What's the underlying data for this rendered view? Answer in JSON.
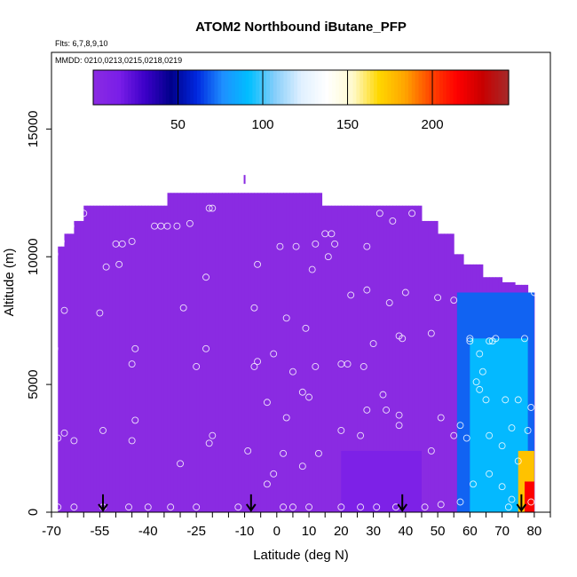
{
  "chart_data": {
    "type": "heatmap",
    "title": "ATOM2 Northbound iButane_PFP",
    "notes": [
      "Flts: 6,7,8,9,10",
      "MMDD: 0210,0213,0215,0218,0219"
    ],
    "xlabel": "Latitude (deg N)",
    "ylabel": "Altitude (m)",
    "xlim": [
      -70,
      85
    ],
    "ylim": [
      0,
      18000
    ],
    "xticks": [
      -70,
      -55,
      -40,
      -25,
      -10,
      0,
      10,
      20,
      30,
      40,
      50,
      60,
      70,
      80
    ],
    "xtick_labels": [
      "-70",
      "-55",
      "-40",
      "-25",
      "-10",
      "0",
      "10",
      "20",
      "30",
      "40",
      "50",
      "60",
      "70",
      "80"
    ],
    "yticks": [
      0,
      5000,
      10000,
      15000
    ],
    "ytick_labels": [
      "0",
      "5000",
      "10000",
      "15000"
    ],
    "colorbar": {
      "range": [
        0,
        245
      ],
      "ticks": [
        50,
        100,
        150,
        200
      ],
      "tick_labels": [
        "50",
        "100",
        "150",
        "200"
      ],
      "colors": [
        "#8a2be2",
        "#7a1ee8",
        "#3c00c8",
        "#00008b",
        "#0028e0",
        "#1e90ff",
        "#00bfff",
        "#87cefa",
        "#e0f0ff",
        "#ffffff",
        "#fffacd",
        "#ffd700",
        "#ffa500",
        "#ff4500",
        "#ff0000",
        "#c80000",
        "#a52a2a"
      ]
    },
    "background_fill": "#8a2be2",
    "regions": [
      {
        "lat": [
          56,
          80
        ],
        "alt": [
          0,
          8600
        ],
        "value": 70
      },
      {
        "lat": [
          60,
          78
        ],
        "alt": [
          0,
          6800
        ],
        "value": 90
      },
      {
        "lat": [
          20,
          45
        ],
        "alt": [
          0,
          2400
        ],
        "value": 12
      },
      {
        "lat": [
          75,
          80
        ],
        "alt": [
          0,
          2400
        ],
        "value": 175
      },
      {
        "lat": [
          77,
          80
        ],
        "alt": [
          0,
          1200
        ],
        "value": 215
      }
    ],
    "sample_points": [
      {
        "lat": -68,
        "alt": 200
      },
      {
        "lat": -63,
        "alt": 200
      },
      {
        "lat": -54,
        "alt": 200
      },
      {
        "lat": -46,
        "alt": 200
      },
      {
        "lat": -40,
        "alt": 200
      },
      {
        "lat": -33,
        "alt": 200
      },
      {
        "lat": -25,
        "alt": 200
      },
      {
        "lat": -12,
        "alt": 200
      },
      {
        "lat": 2,
        "alt": 200
      },
      {
        "lat": 5,
        "alt": 200
      },
      {
        "lat": 10,
        "alt": 200
      },
      {
        "lat": 20,
        "alt": 200
      },
      {
        "lat": 26,
        "alt": 200
      },
      {
        "lat": 31,
        "alt": 200
      },
      {
        "lat": 37,
        "alt": 200
      },
      {
        "lat": 46,
        "alt": 200
      },
      {
        "lat": 51,
        "alt": 300
      },
      {
        "lat": 57,
        "alt": 400
      },
      {
        "lat": 72,
        "alt": 200
      },
      {
        "lat": -68,
        "alt": 2900
      },
      {
        "lat": -66,
        "alt": 3100
      },
      {
        "lat": -63,
        "alt": 2800
      },
      {
        "lat": -54,
        "alt": 3200
      },
      {
        "lat": -45,
        "alt": 2800
      },
      {
        "lat": -44,
        "alt": 3600
      },
      {
        "lat": -30,
        "alt": 1900
      },
      {
        "lat": -21,
        "alt": 2700
      },
      {
        "lat": -20,
        "alt": 3000
      },
      {
        "lat": -9,
        "alt": 2400
      },
      {
        "lat": -3,
        "alt": 1100
      },
      {
        "lat": -1,
        "alt": 1500
      },
      {
        "lat": 2,
        "alt": 2300
      },
      {
        "lat": 3,
        "alt": 3700
      },
      {
        "lat": 8,
        "alt": 1800
      },
      {
        "lat": 13,
        "alt": 2300
      },
      {
        "lat": 20,
        "alt": 3200
      },
      {
        "lat": 26,
        "alt": 3000
      },
      {
        "lat": 28,
        "alt": 4000
      },
      {
        "lat": 38,
        "alt": 3400
      },
      {
        "lat": 48,
        "alt": 2400
      },
      {
        "lat": 51,
        "alt": 3700
      },
      {
        "lat": 55,
        "alt": 3000
      },
      {
        "lat": 57,
        "alt": 3400
      },
      {
        "lat": -3,
        "alt": 4300
      },
      {
        "lat": 8,
        "alt": 4700
      },
      {
        "lat": 10,
        "alt": 4500
      },
      {
        "lat": 20,
        "alt": 5800
      },
      {
        "lat": 27,
        "alt": 5700
      },
      {
        "lat": 33,
        "alt": 4600
      },
      {
        "lat": 34,
        "alt": 4000
      },
      {
        "lat": 38,
        "alt": 3800
      },
      {
        "lat": -69,
        "alt": 10100
      },
      {
        "lat": -67,
        "alt": 10600
      },
      {
        "lat": -64,
        "alt": 11200
      },
      {
        "lat": -60,
        "alt": 11700
      },
      {
        "lat": -50,
        "alt": 10500
      },
      {
        "lat": -48,
        "alt": 10500
      },
      {
        "lat": -45,
        "alt": 10600
      },
      {
        "lat": -38,
        "alt": 11200
      },
      {
        "lat": -36,
        "alt": 11200
      },
      {
        "lat": -34,
        "alt": 11200
      },
      {
        "lat": -31,
        "alt": 11200
      },
      {
        "lat": -27,
        "alt": 11300
      },
      {
        "lat": -21,
        "alt": 11900
      },
      {
        "lat": -20,
        "alt": 11900
      },
      {
        "lat": -53,
        "alt": 9600
      },
      {
        "lat": -49,
        "alt": 9700
      },
      {
        "lat": -22,
        "alt": 9200
      },
      {
        "lat": -6,
        "alt": 9700
      },
      {
        "lat": 1,
        "alt": 10400
      },
      {
        "lat": 6,
        "alt": 10400
      },
      {
        "lat": 12,
        "alt": 10500
      },
      {
        "lat": 15,
        "alt": 10900
      },
      {
        "lat": 17,
        "alt": 10900
      },
      {
        "lat": 18,
        "alt": 10500
      },
      {
        "lat": 16,
        "alt": 10000
      },
      {
        "lat": 11,
        "alt": 9500
      },
      {
        "lat": 23,
        "alt": 8500
      },
      {
        "lat": 28,
        "alt": 10400
      },
      {
        "lat": 32,
        "alt": 11700
      },
      {
        "lat": 36,
        "alt": 11400
      },
      {
        "lat": 42,
        "alt": 11700
      },
      {
        "lat": 28,
        "alt": 8700
      },
      {
        "lat": 35,
        "alt": 8200
      },
      {
        "lat": 40,
        "alt": 8600
      },
      {
        "lat": 50,
        "alt": 8400
      },
      {
        "lat": 55,
        "alt": 8300
      },
      {
        "lat": 68,
        "alt": 9500
      },
      {
        "lat": 80,
        "alt": 8600
      },
      {
        "lat": -66,
        "alt": 7900
      },
      {
        "lat": -55,
        "alt": 7800
      },
      {
        "lat": -29,
        "alt": 8000
      },
      {
        "lat": -7,
        "alt": 8000
      },
      {
        "lat": 3,
        "alt": 7600
      },
      {
        "lat": 9,
        "alt": 7200
      },
      {
        "lat": -69,
        "alt": 6400
      },
      {
        "lat": -45,
        "alt": 5800
      },
      {
        "lat": -44,
        "alt": 6400
      },
      {
        "lat": -25,
        "alt": 5700
      },
      {
        "lat": -22,
        "alt": 6400
      },
      {
        "lat": -7,
        "alt": 5700
      },
      {
        "lat": -6,
        "alt": 5900
      },
      {
        "lat": -1,
        "alt": 6200
      },
      {
        "lat": 5,
        "alt": 5500
      },
      {
        "lat": 12,
        "alt": 5700
      },
      {
        "lat": 22,
        "alt": 5800
      },
      {
        "lat": 30,
        "alt": 6600
      },
      {
        "lat": 38,
        "alt": 6900
      },
      {
        "lat": 39,
        "alt": 6800
      },
      {
        "lat": 48,
        "alt": 7000
      },
      {
        "lat": 60,
        "alt": 6700
      },
      {
        "lat": 60,
        "alt": 6800
      },
      {
        "lat": 66,
        "alt": 6700
      },
      {
        "lat": 67,
        "alt": 6700
      },
      {
        "lat": 68,
        "alt": 6800
      },
      {
        "lat": 77,
        "alt": 6800
      },
      {
        "lat": 63,
        "alt": 6200
      },
      {
        "lat": 64,
        "alt": 5500
      },
      {
        "lat": 62,
        "alt": 5100
      },
      {
        "lat": 63,
        "alt": 4800
      },
      {
        "lat": 65,
        "alt": 4400
      },
      {
        "lat": 71,
        "alt": 4400
      },
      {
        "lat": 75,
        "alt": 4400
      },
      {
        "lat": 79,
        "alt": 4100
      },
      {
        "lat": 78,
        "alt": 3200
      },
      {
        "lat": 73,
        "alt": 3300
      },
      {
        "lat": 70,
        "alt": 2600
      },
      {
        "lat": 75,
        "alt": 2000
      },
      {
        "lat": 66,
        "alt": 3000
      },
      {
        "lat": 59,
        "alt": 2900
      },
      {
        "lat": 61,
        "alt": 1100
      },
      {
        "lat": 66,
        "alt": 1500
      },
      {
        "lat": 70,
        "alt": 1000
      },
      {
        "lat": 73,
        "alt": 500
      },
      {
        "lat": 79,
        "alt": 400
      }
    ],
    "arrows_lat": [
      -54,
      -8,
      39,
      76
    ],
    "marker_lat": -10,
    "marker_alt": 12900
  }
}
